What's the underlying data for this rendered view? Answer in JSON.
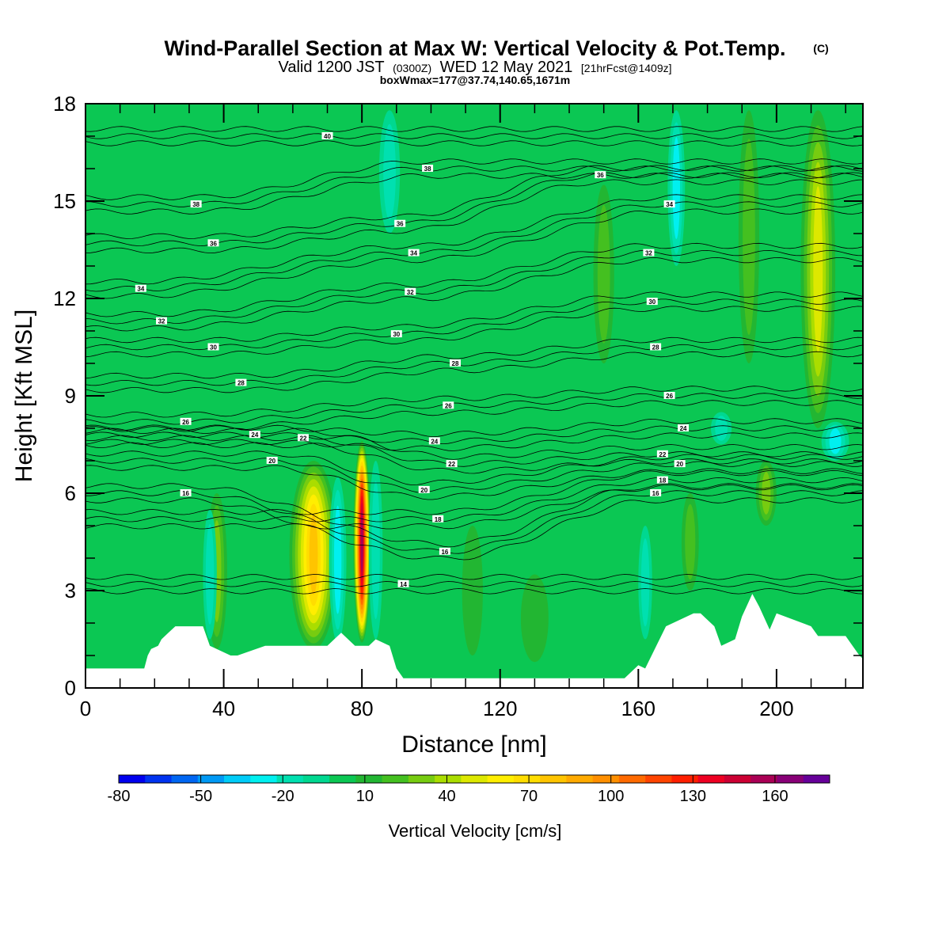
{
  "header": {
    "title": "Wind-Parallel Section at Max W: Vertical Velocity & Pot.Temp.",
    "copyright": "(C)",
    "valid_prefix": "Valid 1200 JST",
    "valid_zulu": "(0300Z)",
    "valid_date": "WED 12 May 2021",
    "forecast": "[21hrFcst@1409z]",
    "boxmax": "boxWmax=177@37.74,140.65,1671m"
  },
  "chart_data": {
    "type": "heatmap",
    "xlabel": "Distance [nm]",
    "ylabel": "Height [Kft MSL]",
    "xlim": [
      0,
      225
    ],
    "ylim": [
      0,
      18
    ],
    "x_ticks": [
      0,
      40,
      80,
      120,
      160,
      200
    ],
    "y_ticks": [
      0,
      3,
      6,
      9,
      12,
      15,
      18
    ],
    "background_color": "#0bc753",
    "colorbar": {
      "title": "Vertical Velocity [cm/s]",
      "tick_labels": [
        "-80",
        "-50",
        "-20",
        "10",
        "40",
        "70",
        "100",
        "130",
        "160"
      ],
      "tick_values": [
        -80,
        -50,
        -20,
        10,
        40,
        70,
        100,
        130,
        160
      ],
      "levels": [
        -80,
        -70,
        -60,
        -50,
        -40,
        -30,
        -20,
        -10,
        0,
        10,
        20,
        30,
        40,
        50,
        60,
        70,
        80,
        90,
        100,
        110,
        120,
        130,
        140,
        150,
        160,
        170,
        180
      ],
      "colors": [
        "#0000ee",
        "#0033f0",
        "#0066f2",
        "#0099f5",
        "#00ccf8",
        "#00f0f0",
        "#00e0b0",
        "#00d890",
        "#0bc753",
        "#22b632",
        "#44c020",
        "#77cc10",
        "#aadd00",
        "#dde800",
        "#ffee00",
        "#ffdd00",
        "#ffc400",
        "#ffaa00",
        "#ff8f00",
        "#ff6a00",
        "#ff4400",
        "#ff1e00",
        "#ee0022",
        "#cc0033",
        "#aa0055",
        "#880077",
        "#660099"
      ]
    },
    "velocity_features": [
      {
        "x": 66,
        "x_half_width": 7,
        "y_bottom": 1.2,
        "y_top": 7.0,
        "peak": 85
      },
      {
        "x": 80,
        "x_half_width": 2.5,
        "y_bottom": 1.4,
        "y_top": 7.6,
        "peak": 170
      },
      {
        "x": 73,
        "x_half_width": 2.5,
        "y_bottom": 1.4,
        "y_top": 6.5,
        "peak": -25
      },
      {
        "x": 84,
        "x_half_width": 2,
        "y_bottom": 1.5,
        "y_top": 7.0,
        "peak": -18
      },
      {
        "x": 38,
        "x_half_width": 3,
        "y_bottom": 1.2,
        "y_top": 6.0,
        "peak": 35
      },
      {
        "x": 36,
        "x_half_width": 2,
        "y_bottom": 1.5,
        "y_top": 5.5,
        "peak": -20
      },
      {
        "x": 212,
        "x_half_width": 5,
        "y_bottom": 8.0,
        "y_top": 17.8,
        "peak": 55
      },
      {
        "x": 192,
        "x_half_width": 3,
        "y_bottom": 10.0,
        "y_top": 17.8,
        "peak": 30
      },
      {
        "x": 150,
        "x_half_width": 3,
        "y_bottom": 10.0,
        "y_top": 15.5,
        "peak": 25
      },
      {
        "x": 171,
        "x_half_width": 2.5,
        "y_bottom": 13.0,
        "y_top": 17.8,
        "peak": -30
      },
      {
        "x": 88,
        "x_half_width": 3,
        "y_bottom": 14.0,
        "y_top": 17.8,
        "peak": -15
      },
      {
        "x": 197,
        "x_half_width": 3,
        "y_bottom": 5.0,
        "y_top": 7.0,
        "peak": 35
      },
      {
        "x": 112,
        "x_half_width": 3,
        "y_bottom": 1.0,
        "y_top": 5.0,
        "peak": 20
      },
      {
        "x": 130,
        "x_half_width": 4,
        "y_bottom": 0.8,
        "y_top": 3.5,
        "peak": 12
      },
      {
        "x": 175,
        "x_half_width": 2.5,
        "y_bottom": 3.0,
        "y_top": 6.0,
        "peak": 30
      },
      {
        "x": 162,
        "x_half_width": 2,
        "y_bottom": 1.5,
        "y_top": 5.0,
        "peak": -20
      },
      {
        "x": 217,
        "x_half_width": 4,
        "y_bottom": 7.0,
        "y_top": 8.2,
        "peak": -22
      },
      {
        "x": 184,
        "x_half_width": 3,
        "y_bottom": 7.5,
        "y_top": 8.5,
        "peak": -15
      }
    ],
    "terrain": {
      "x": [
        0,
        17,
        18,
        19,
        21,
        22,
        24,
        26,
        34,
        36,
        42,
        44,
        52,
        54,
        70,
        72,
        74,
        76,
        78,
        82,
        84,
        88,
        90,
        92,
        134,
        156,
        160,
        162,
        168,
        170,
        176,
        178,
        182,
        184,
        188,
        190,
        193,
        195,
        198,
        200,
        210,
        212,
        220,
        222,
        224,
        225
      ],
      "y": [
        0.6,
        0.6,
        1.0,
        1.2,
        1.3,
        1.5,
        1.7,
        1.9,
        1.9,
        1.3,
        1.0,
        1.0,
        1.3,
        1.3,
        1.3,
        1.5,
        1.7,
        1.5,
        1.3,
        1.3,
        1.5,
        1.3,
        0.6,
        0.3,
        0.3,
        0.3,
        0.7,
        0.6,
        1.9,
        2.0,
        2.3,
        2.3,
        1.9,
        1.3,
        1.5,
        2.2,
        2.9,
        2.5,
        1.8,
        2.3,
        1.9,
        1.6,
        1.6,
        1.3,
        1.0,
        0.9
      ]
    },
    "isentropes": {
      "levels": [
        14,
        16,
        18,
        20,
        22,
        24,
        26,
        28,
        30,
        32,
        34,
        36,
        38,
        40
      ],
      "labels": [
        {
          "text": "14",
          "x": 92,
          "y": 3.2
        },
        {
          "text": "16",
          "x": 29,
          "y": 6.0
        },
        {
          "text": "16",
          "x": 104,
          "y": 4.2
        },
        {
          "text": "16",
          "x": 165,
          "y": 6.0
        },
        {
          "text": "18",
          "x": 102,
          "y": 5.2
        },
        {
          "text": "18",
          "x": 167,
          "y": 6.4
        },
        {
          "text": "20",
          "x": 54,
          "y": 7.0
        },
        {
          "text": "20",
          "x": 98,
          "y": 6.1
        },
        {
          "text": "20",
          "x": 172,
          "y": 6.9
        },
        {
          "text": "22",
          "x": 63,
          "y": 7.7
        },
        {
          "text": "22",
          "x": 106,
          "y": 6.9
        },
        {
          "text": "22",
          "x": 167,
          "y": 7.2
        },
        {
          "text": "24",
          "x": 49,
          "y": 7.8
        },
        {
          "text": "24",
          "x": 101,
          "y": 7.6
        },
        {
          "text": "24",
          "x": 173,
          "y": 8.0
        },
        {
          "text": "26",
          "x": 29,
          "y": 8.2
        },
        {
          "text": "26",
          "x": 105,
          "y": 8.7
        },
        {
          "text": "26",
          "x": 169,
          "y": 9.0
        },
        {
          "text": "28",
          "x": 45,
          "y": 9.4
        },
        {
          "text": "28",
          "x": 107,
          "y": 10.0
        },
        {
          "text": "28",
          "x": 165,
          "y": 10.5
        },
        {
          "text": "30",
          "x": 37,
          "y": 10.5
        },
        {
          "text": "30",
          "x": 90,
          "y": 10.9
        },
        {
          "text": "30",
          "x": 164,
          "y": 11.9
        },
        {
          "text": "32",
          "x": 22,
          "y": 11.3
        },
        {
          "text": "32",
          "x": 94,
          "y": 12.2
        },
        {
          "text": "32",
          "x": 163,
          "y": 13.4
        },
        {
          "text": "34",
          "x": 16,
          "y": 12.3
        },
        {
          "text": "34",
          "x": 95,
          "y": 13.4
        },
        {
          "text": "34",
          "x": 169,
          "y": 14.9
        },
        {
          "text": "36",
          "x": 37,
          "y": 13.7
        },
        {
          "text": "36",
          "x": 91,
          "y": 14.3
        },
        {
          "text": "36",
          "x": 149,
          "y": 15.8
        },
        {
          "text": "38",
          "x": 32,
          "y": 14.9
        },
        {
          "text": "38",
          "x": 99,
          "y": 16.0
        },
        {
          "text": "40",
          "x": 70,
          "y": 17.0
        }
      ]
    }
  }
}
